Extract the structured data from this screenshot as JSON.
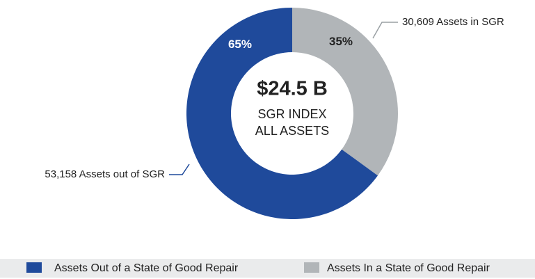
{
  "chart_data": {
    "type": "pie",
    "donut": true,
    "categories": [
      "Assets Out of a State of Good Repair",
      "Assets In a State of Good Repair"
    ],
    "values": [
      65,
      35
    ],
    "value_labels": [
      "65%",
      "35%"
    ],
    "colors": [
      "#1f4a9b",
      "#b1b5b8"
    ],
    "center_text": [
      "$24.5 B",
      "SGR INDEX",
      "ALL ASSETS"
    ],
    "annotations": [
      "53,158 Assets out of SGR",
      "30,609 Assets in SGR"
    ],
    "legend": "bottom"
  }
}
